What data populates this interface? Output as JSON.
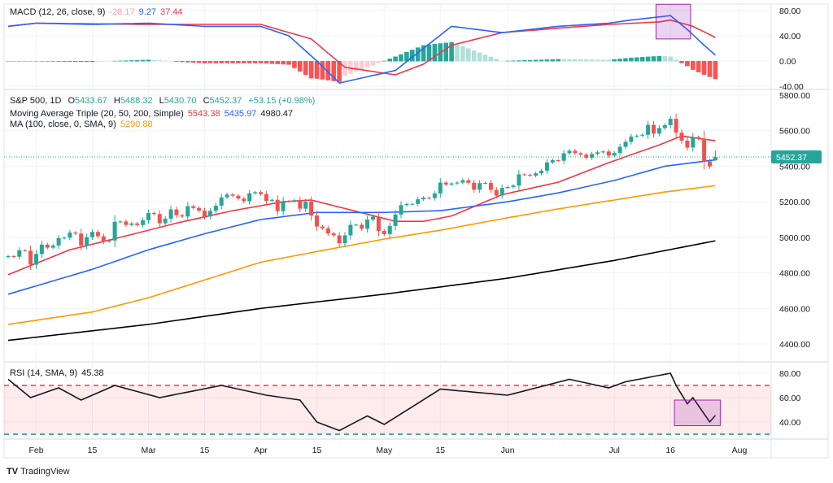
{
  "macd_legend": {
    "label": "MACD (12, 26, close, 9)",
    "hist": "-28.17",
    "macd": "9.27",
    "signal": "37.44"
  },
  "main_legend": {
    "symbol": "S&P 500, 1D",
    "o_label": "O",
    "o": "5433.67",
    "h_label": "H",
    "h": "5488.32",
    "l_label": "L",
    "l": "5430.70",
    "c_label": "C",
    "c": "5452.37",
    "change": "+53.15 (+0.98%)"
  },
  "ma_triple_legend": {
    "label": "Moving Average Triple (20, 50, 200, Simple)",
    "v20": "5543.38",
    "v50": "5435.97",
    "v200": "4980.47"
  },
  "ma100_legend": {
    "label": "MA (100, close, 0, SMA, 9)",
    "v": "5290.88"
  },
  "rsi_legend": {
    "label": "RSI (14, SMA, 9)",
    "v": "45.38"
  },
  "last_price_tag": "5452.37",
  "brand": "TradingView",
  "colors": {
    "up": "#26a69a",
    "down": "#ef5350",
    "ma20": "#f23645",
    "ma50": "#2962ff",
    "ma100": "#ff9800",
    "ma200": "#000000",
    "macd": "#2962ff",
    "signal": "#f23645",
    "highlight": "#9c27b0"
  },
  "chart_data": [
    {
      "type": "candlestick",
      "title": "S&P 500, 1D",
      "yaxis_ticks": [
        "5800.00",
        "5600.00",
        "5400.00",
        "5200.00",
        "5000.00",
        "4800.00",
        "4600.00",
        "4400.00"
      ],
      "ylim": [
        4400,
        5800
      ],
      "xaxis_ticks": [
        {
          "label": "Feb",
          "date": "02-01"
        },
        {
          "label": "15",
          "date": "02-15"
        },
        {
          "label": "Mar",
          "date": "03-01"
        },
        {
          "label": "15",
          "date": "03-15"
        },
        {
          "label": "Apr",
          "date": "04-01"
        },
        {
          "label": "15",
          "date": "04-15"
        },
        {
          "label": "May",
          "date": "05-01"
        },
        {
          "label": "15",
          "date": "05-15"
        },
        {
          "label": "Jun",
          "date": "06-03"
        },
        {
          "label": "Jul",
          "date": "07-01"
        },
        {
          "label": "16",
          "date": "07-16"
        },
        {
          "label": "Aug",
          "date": "08-01"
        }
      ],
      "dates": [
        "01-25",
        "01-26",
        "01-29",
        "01-30",
        "01-31",
        "02-01",
        "02-02",
        "02-05",
        "02-06",
        "02-07",
        "02-08",
        "02-09",
        "02-12",
        "02-13",
        "02-14",
        "02-15",
        "02-16",
        "02-20",
        "02-21",
        "02-22",
        "02-23",
        "02-26",
        "02-27",
        "02-28",
        "02-29",
        "03-01",
        "03-04",
        "03-05",
        "03-06",
        "03-07",
        "03-08",
        "03-11",
        "03-12",
        "03-13",
        "03-14",
        "03-15",
        "03-18",
        "03-19",
        "03-20",
        "03-21",
        "03-22",
        "03-25",
        "03-26",
        "03-27",
        "03-28",
        "04-01",
        "04-02",
        "04-03",
        "04-04",
        "04-05",
        "04-08",
        "04-09",
        "04-10",
        "04-11",
        "04-12",
        "04-15",
        "04-16",
        "04-17",
        "04-18",
        "04-19",
        "04-22",
        "04-23",
        "04-24",
        "04-25",
        "04-26",
        "04-29",
        "04-30",
        "05-01",
        "05-02",
        "05-03",
        "05-06",
        "05-07",
        "05-08",
        "05-09",
        "05-10",
        "05-13",
        "05-14",
        "05-15",
        "05-16",
        "05-17",
        "05-20",
        "05-21",
        "05-22",
        "05-23",
        "05-24",
        "05-28",
        "05-29",
        "05-30",
        "05-31",
        "06-03",
        "06-04",
        "06-05",
        "06-06",
        "06-07",
        "06-10",
        "06-11",
        "06-12",
        "06-13",
        "06-14",
        "06-17",
        "06-18",
        "06-20",
        "06-21",
        "06-24",
        "06-25",
        "06-26",
        "06-27",
        "06-28",
        "07-01",
        "07-02",
        "07-03",
        "07-05",
        "07-08",
        "07-09",
        "07-10",
        "07-11",
        "07-12",
        "07-15",
        "07-16",
        "07-17",
        "07-18",
        "07-19",
        "07-22",
        "07-23",
        "07-24",
        "07-25",
        "07-26"
      ],
      "close": [
        4894,
        4891,
        4927,
        4925,
        4846,
        4906,
        4959,
        4942,
        4954,
        4995,
        4998,
        5027,
        5021,
        4953,
        5001,
        5030,
        5006,
        4976,
        4982,
        5087,
        5089,
        5070,
        5078,
        5069,
        5096,
        5137,
        5131,
        5079,
        5105,
        5157,
        5124,
        5117,
        5175,
        5165,
        5150,
        5117,
        5149,
        5178,
        5225,
        5241,
        5234,
        5218,
        5203,
        5248,
        5254,
        5243,
        5205,
        5211,
        5147,
        5204,
        5202,
        5209,
        5161,
        5200,
        5123,
        5061,
        5051,
        5022,
        5011,
        4967,
        5011,
        5070,
        5071,
        5048,
        5100,
        5116,
        5036,
        5018,
        5064,
        5128,
        5181,
        5187,
        5188,
        5214,
        5223,
        5221,
        5247,
        5308,
        5297,
        5303,
        5308,
        5321,
        5307,
        5268,
        5305,
        5306,
        5267,
        5235,
        5278,
        5283,
        5291,
        5354,
        5352,
        5347,
        5360,
        5375,
        5421,
        5434,
        5431,
        5473,
        5487,
        5473,
        5465,
        5448,
        5469,
        5478,
        5483,
        5460,
        5475,
        5509,
        5537,
        5567,
        5572,
        5577,
        5633,
        5584,
        5615,
        5631,
        5667,
        5589,
        5544,
        5505,
        5564,
        5555,
        5427,
        5399,
        5452.37
      ],
      "last_bar": {
        "open": 5433.67,
        "high": 5488.32,
        "low": 5430.7,
        "close": 5452.37
      },
      "series": [
        {
          "name": "MA 20",
          "points": [
            [
              "01-25",
              4790
            ],
            [
              "02-09",
              4930
            ],
            [
              "02-23",
              5000
            ],
            [
              "03-08",
              5080
            ],
            [
              "03-22",
              5150
            ],
            [
              "04-05",
              5200
            ],
            [
              "04-12",
              5210
            ],
            [
              "04-26",
              5130
            ],
            [
              "05-03",
              5090
            ],
            [
              "05-10",
              5090
            ],
            [
              "05-17",
              5120
            ],
            [
              "05-31",
              5240
            ],
            [
              "06-14",
              5310
            ],
            [
              "06-28",
              5420
            ],
            [
              "07-12",
              5520
            ],
            [
              "07-18",
              5570
            ],
            [
              "07-26",
              5543.38
            ]
          ]
        },
        {
          "name": "MA 50",
          "points": [
            [
              "01-25",
              4680
            ],
            [
              "02-15",
              4820
            ],
            [
              "03-01",
              4930
            ],
            [
              "03-15",
              5020
            ],
            [
              "04-01",
              5100
            ],
            [
              "04-15",
              5140
            ],
            [
              "05-01",
              5140
            ],
            [
              "05-15",
              5150
            ],
            [
              "06-03",
              5200
            ],
            [
              "06-14",
              5250
            ],
            [
              "07-01",
              5320
            ],
            [
              "07-15",
              5400
            ],
            [
              "07-26",
              5435.97
            ]
          ]
        },
        {
          "name": "MA 100",
          "points": [
            [
              "01-25",
              4510
            ],
            [
              "02-15",
              4580
            ],
            [
              "03-01",
              4660
            ],
            [
              "03-15",
              4760
            ],
            [
              "04-01",
              4860
            ],
            [
              "04-15",
              4920
            ],
            [
              "05-01",
              4990
            ],
            [
              "05-15",
              5040
            ],
            [
              "06-03",
              5110
            ],
            [
              "06-14",
              5160
            ],
            [
              "07-01",
              5210
            ],
            [
              "07-15",
              5255
            ],
            [
              "07-26",
              5290.88
            ]
          ]
        },
        {
          "name": "MA 200",
          "points": [
            [
              "01-25",
              4420
            ],
            [
              "03-01",
              4510
            ],
            [
              "04-01",
              4600
            ],
            [
              "05-01",
              4680
            ],
            [
              "06-03",
              4770
            ],
            [
              "07-01",
              4870
            ],
            [
              "07-26",
              4980.47
            ]
          ]
        }
      ]
    },
    {
      "type": "line",
      "title": "MACD (12, 26, close, 9)",
      "yaxis_ticks": [
        "80.00",
        "40.00",
        "0.00",
        "-40.00"
      ],
      "ylim": [
        -40,
        80
      ],
      "series": [
        {
          "name": "MACD",
          "points": [
            [
              "01-25",
              55
            ],
            [
              "02-01",
              60
            ],
            [
              "02-15",
              58
            ],
            [
              "03-01",
              60
            ],
            [
              "03-15",
              55
            ],
            [
              "04-01",
              55
            ],
            [
              "04-08",
              40
            ],
            [
              "04-15",
              0
            ],
            [
              "04-19",
              -35
            ],
            [
              "04-26",
              -25
            ],
            [
              "05-03",
              -15
            ],
            [
              "05-10",
              20
            ],
            [
              "05-17",
              55
            ],
            [
              "05-31",
              45
            ],
            [
              "06-14",
              55
            ],
            [
              "06-28",
              60
            ],
            [
              "07-05",
              65
            ],
            [
              "07-12",
              70
            ],
            [
              "07-16",
              72
            ],
            [
              "07-19",
              50
            ],
            [
              "07-24",
              25
            ],
            [
              "07-26",
              9.27
            ]
          ]
        },
        {
          "name": "Signal",
          "points": [
            [
              "01-25",
              55
            ],
            [
              "02-01",
              60
            ],
            [
              "03-01",
              58
            ],
            [
              "04-01",
              58
            ],
            [
              "04-12",
              35
            ],
            [
              "04-22",
              -10
            ],
            [
              "05-03",
              -22
            ],
            [
              "05-10",
              -5
            ],
            [
              "05-17",
              25
            ],
            [
              "05-31",
              45
            ],
            [
              "06-14",
              52
            ],
            [
              "06-28",
              58
            ],
            [
              "07-12",
              62
            ],
            [
              "07-16",
              65
            ],
            [
              "07-22",
              55
            ],
            [
              "07-26",
              37.44
            ]
          ]
        }
      ],
      "highlight": {
        "from": "07-12",
        "to": "07-19",
        "ymin": 35,
        "ymax": 90
      }
    },
    {
      "type": "line",
      "title": "RSI (14, SMA, 9)",
      "yaxis_ticks": [
        "80.00",
        "60.00",
        "40.00"
      ],
      "ylim": [
        30,
        80
      ],
      "bands": [
        70,
        30
      ],
      "series": [
        {
          "name": "RSI",
          "points": [
            [
              "01-25",
              75
            ],
            [
              "01-31",
              60
            ],
            [
              "02-07",
              68
            ],
            [
              "02-13",
              58
            ],
            [
              "02-22",
              70
            ],
            [
              "03-05",
              60
            ],
            [
              "03-20",
              70
            ],
            [
              "04-02",
              62
            ],
            [
              "04-10",
              58
            ],
            [
              "04-15",
              40
            ],
            [
              "04-19",
              33
            ],
            [
              "04-26",
              45
            ],
            [
              "05-01",
              38
            ],
            [
              "05-15",
              67
            ],
            [
              "06-03",
              62
            ],
            [
              "06-18",
              75
            ],
            [
              "06-28",
              68
            ],
            [
              "07-03",
              73
            ],
            [
              "07-16",
              80
            ],
            [
              "07-17",
              70
            ],
            [
              "07-19",
              55
            ],
            [
              "07-22",
              60
            ],
            [
              "07-25",
              40
            ],
            [
              "07-26",
              45.38
            ]
          ]
        }
      ],
      "highlight": {
        "from": "07-17",
        "to": "07-26",
        "ymin": 37,
        "ymax": 58
      }
    }
  ]
}
